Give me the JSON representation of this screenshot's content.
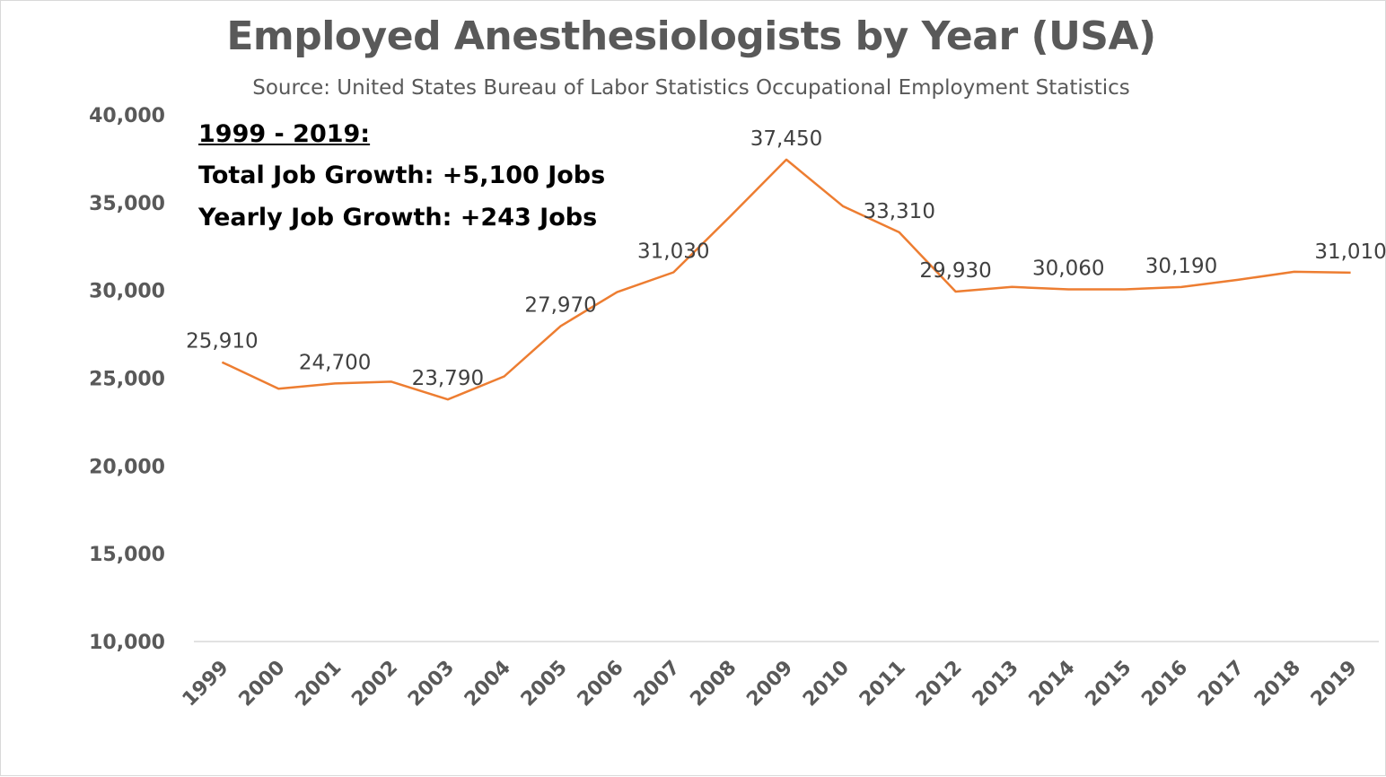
{
  "chart_data": {
    "type": "line",
    "title": "Employed Anesthesiologists by Year (USA)",
    "subtitle": "Source: United States Bureau of Labor Statistics Occupational Employment Statistics",
    "annotation": {
      "heading": "1999 - 2019:",
      "line1": "Total Job Growth: +5,100 Jobs",
      "line2": "Yearly Job Growth: +243 Jobs"
    },
    "x": [
      "1999",
      "2000",
      "2001",
      "2002",
      "2003",
      "2004",
      "2005",
      "2006",
      "2007",
      "2008",
      "2009",
      "2010",
      "2011",
      "2012",
      "2013",
      "2014",
      "2015",
      "2016",
      "2017",
      "2018",
      "2019"
    ],
    "series": [
      {
        "name": "Employed Anesthesiologists",
        "color": "#ed7d31",
        "values": [
          25910,
          24400,
          24700,
          24800,
          23790,
          25100,
          27970,
          29900,
          31030,
          34200,
          37450,
          34800,
          33310,
          29930,
          30200,
          30060,
          30060,
          30190,
          30600,
          31060,
          31010
        ]
      }
    ],
    "data_labels": [
      {
        "index": 0,
        "text": "25,910"
      },
      {
        "index": 2,
        "text": "24,700"
      },
      {
        "index": 4,
        "text": "23,790"
      },
      {
        "index": 6,
        "text": "27,970"
      },
      {
        "index": 8,
        "text": "31,030"
      },
      {
        "index": 10,
        "text": "37,450"
      },
      {
        "index": 12,
        "text": "33,310"
      },
      {
        "index": 13,
        "text": "29,930"
      },
      {
        "index": 15,
        "text": "30,060"
      },
      {
        "index": 17,
        "text": "30,190"
      },
      {
        "index": 20,
        "text": "31,010"
      }
    ],
    "y_ticks": [
      "10,000",
      "15,000",
      "20,000",
      "25,000",
      "30,000",
      "35,000",
      "40,000"
    ],
    "y_tick_values": [
      10000,
      15000,
      20000,
      25000,
      30000,
      35000,
      40000
    ],
    "ylim": [
      10000,
      40000
    ],
    "xlabel": "",
    "ylabel": "",
    "grid": false
  }
}
